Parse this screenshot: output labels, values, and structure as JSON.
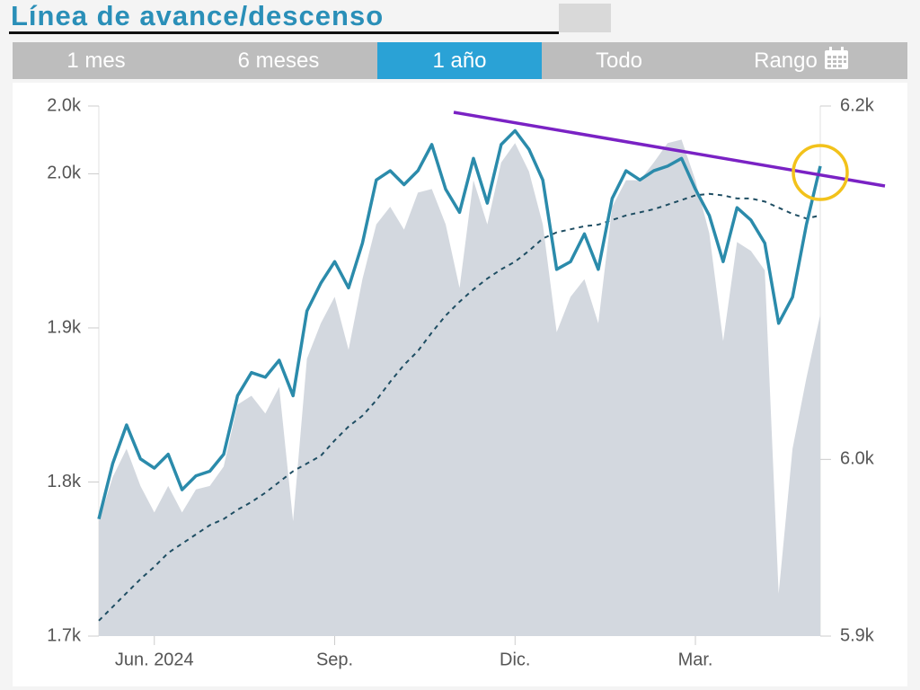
{
  "header": {
    "title": "Línea de avance/descenso"
  },
  "tabs": [
    "1 mes",
    "6 meses",
    "1 año",
    "Todo",
    "Rango"
  ],
  "active_tab": 2,
  "chart_data": {
    "type": "line",
    "categories": [
      null,
      null,
      null,
      null,
      "Jun. 2024",
      null,
      null,
      null,
      null,
      null,
      null,
      null,
      null,
      null,
      null,
      null,
      null,
      "Sep.",
      null,
      null,
      null,
      null,
      null,
      null,
      null,
      null,
      null,
      null,
      null,
      null,
      "Dic.",
      null,
      null,
      null,
      null,
      null,
      null,
      null,
      null,
      null,
      null,
      null,
      null,
      "Mar.",
      null,
      null,
      null,
      null,
      null,
      null,
      null,
      null,
      null
    ],
    "ylim": [
      1700,
      2044
    ],
    "yticks": [
      {
        "value": 1700,
        "label": "1.7k"
      },
      {
        "value": 1800,
        "label": "1.8k"
      },
      {
        "value": 1900,
        "label": "1.9k"
      },
      {
        "value": 2000,
        "label": "2.0k"
      },
      {
        "value": 2044,
        "label": "2.0k"
      }
    ],
    "y2lim": [
      5900,
      6200
    ],
    "y2ticks": [
      {
        "value": 5900,
        "label": "5.9k"
      },
      {
        "value": 6000,
        "label": "6.0k"
      },
      {
        "value": 6200,
        "label": "6.2k"
      }
    ],
    "series": [
      {
        "style": "area",
        "axis": "y2",
        "color": "#d3d8df",
        "values": [
          5965,
          5990,
          6006,
          5985,
          5970,
          5985,
          5970,
          5983,
          5985,
          5996,
          6031,
          6036,
          6026,
          6041,
          5965,
          6057,
          6077,
          6092,
          6062,
          6102,
          6133,
          6143,
          6130,
          6151,
          6153,
          6133,
          6097,
          6158,
          6133,
          6168,
          6179,
          6163,
          6133,
          6072,
          6092,
          6102,
          6077,
          6143,
          6158,
          6158,
          6168,
          6179,
          6181,
          6158,
          6128,
          6067,
          6123,
          6118,
          6107,
          5924,
          6006,
          6046,
          6082
        ]
      },
      {
        "style": "dashed",
        "color": "#1f4e63",
        "values": [
          1710,
          1719,
          1728,
          1737,
          1745,
          1754,
          1760,
          1766,
          1772,
          1776,
          1782,
          1787,
          1793,
          1800,
          1807,
          1812,
          1817,
          1827,
          1836,
          1843,
          1853,
          1865,
          1876,
          1885,
          1897,
          1908,
          1917,
          1925,
          1932,
          1938,
          1943,
          1950,
          1958,
          1962,
          1964,
          1966,
          1967,
          1970,
          1973,
          1975,
          1977,
          1980,
          1983,
          1986,
          1987,
          1986,
          1984,
          1984,
          1982,
          1978,
          1974,
          1971,
          1973
        ]
      },
      {
        "style": "solid",
        "color": "#2b8bab",
        "values": [
          1776,
          1812,
          1837,
          1815,
          1809,
          1818,
          1795,
          1804,
          1807,
          1818,
          1856,
          1871,
          1868,
          1879,
          1856,
          1911,
          1929,
          1943,
          1926,
          1955,
          1996,
          2002,
          1993,
          2002,
          2019,
          1990,
          1975,
          2010,
          1981,
          2019,
          2028,
          2016,
          1996,
          1938,
          1943,
          1961,
          1938,
          1984,
          2002,
          1996,
          2002,
          2005,
          2010,
          1990,
          1973,
          1943,
          1978,
          1970,
          1955,
          1903,
          1920,
          1967,
          2005
        ]
      }
    ]
  }
}
